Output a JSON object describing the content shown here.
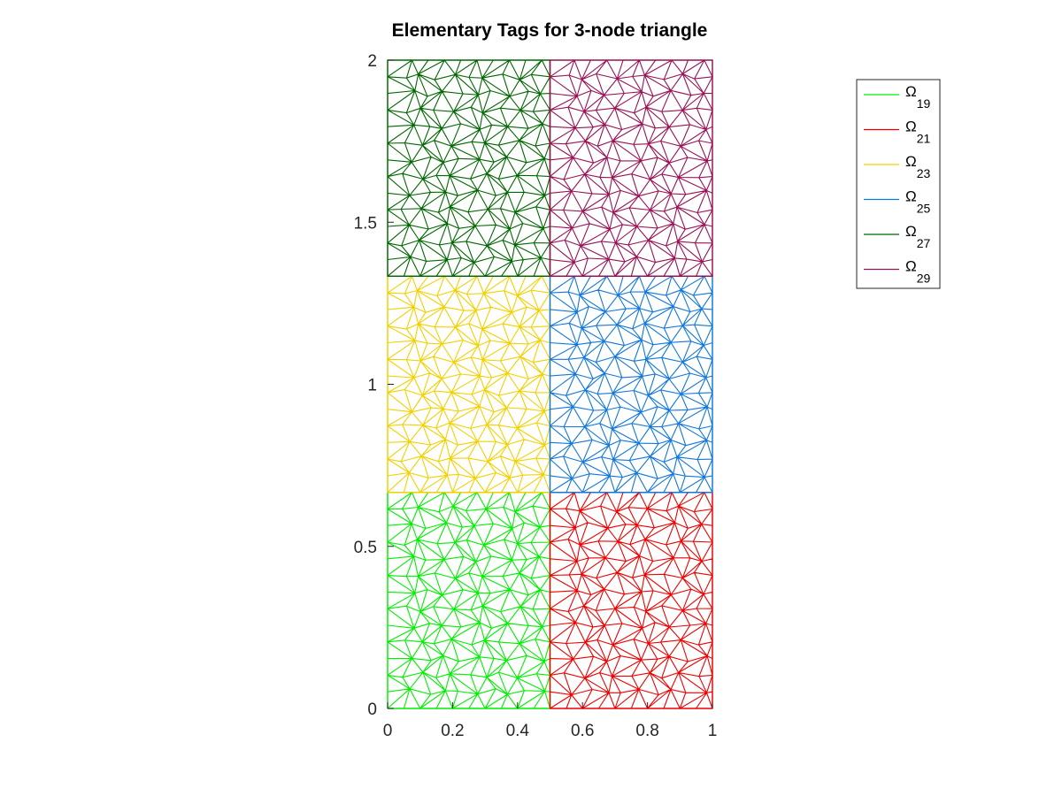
{
  "chart_data": {
    "type": "mesh",
    "title": "Elementary Tags for 3-node triangle",
    "xlim": [
      0,
      1
    ],
    "ylim": [
      0,
      2
    ],
    "xticks": [
      {
        "value": 0,
        "label": "0"
      },
      {
        "value": 0.2,
        "label": "0.2"
      },
      {
        "value": 0.4,
        "label": "0.4"
      },
      {
        "value": 0.6,
        "label": "0.6"
      },
      {
        "value": 0.8,
        "label": "0.8"
      },
      {
        "value": 1,
        "label": "1"
      }
    ],
    "yticks": [
      {
        "value": 0,
        "label": "0"
      },
      {
        "value": 0.5,
        "label": "0.5"
      },
      {
        "value": 1,
        "label": "1"
      },
      {
        "value": 1.5,
        "label": "1.5"
      },
      {
        "value": 2,
        "label": "2"
      }
    ],
    "legend_position": "top-right",
    "series": [
      {
        "name": "Ω",
        "tag": "19",
        "color": "#00ee00",
        "x_range": [
          0,
          0.5
        ],
        "y_range": [
          0,
          0.6667
        ]
      },
      {
        "name": "Ω",
        "tag": "21",
        "color": "#ee0000",
        "x_range": [
          0.5,
          1
        ],
        "y_range": [
          0,
          0.6667
        ]
      },
      {
        "name": "Ω",
        "tag": "23",
        "color": "#f2d000",
        "x_range": [
          0,
          0.5
        ],
        "y_range": [
          0.6667,
          1.3333
        ]
      },
      {
        "name": "Ω",
        "tag": "25",
        "color": "#1177dd",
        "x_range": [
          0.5,
          1
        ],
        "y_range": [
          0.6667,
          1.3333
        ]
      },
      {
        "name": "Ω",
        "tag": "27",
        "color": "#006600",
        "x_range": [
          0,
          0.5
        ],
        "y_range": [
          1.3333,
          2
        ]
      },
      {
        "name": "Ω",
        "tag": "29",
        "color": "#991155",
        "x_range": [
          0.5,
          1
        ],
        "y_range": [
          1.3333,
          2
        ]
      }
    ]
  }
}
